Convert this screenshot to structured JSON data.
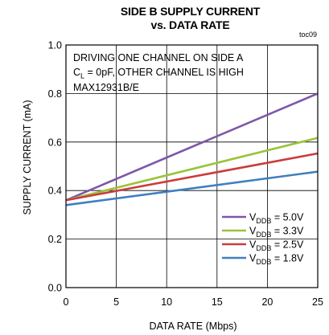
{
  "chart_data": {
    "type": "line",
    "title_line1": "SIDE B SUPPLY CURRENT",
    "title_line2": "vs. DATA RATE",
    "figure_tag": "toc09",
    "xlabel": "DATA RATE (Mbps)",
    "ylabel": "SUPPLY CURRENT (mA)",
    "xlim": [
      0,
      25
    ],
    "ylim": [
      0.0,
      1.0
    ],
    "x_ticks": [
      "0",
      "5",
      "10",
      "15",
      "20",
      "25"
    ],
    "y_ticks": [
      "0.0",
      "0.2",
      "0.4",
      "0.6",
      "0.8",
      "1.0"
    ],
    "grid": true,
    "legend_position": "bottom-right",
    "annotations": [
      "DRIVING ONE CHANNEL ON SIDE A",
      "C_L = 0pF, OTHER CHANNEL IS HIGH",
      "MAX12931B/E"
    ],
    "series": [
      {
        "name": "V_DDB = 5.0V",
        "color": "#7e57a8",
        "x": [
          0,
          25
        ],
        "y": [
          0.36,
          0.8
        ]
      },
      {
        "name": "V_DDB = 3.3V",
        "color": "#9ac43c",
        "x": [
          0,
          25
        ],
        "y": [
          0.36,
          0.617
        ]
      },
      {
        "name": "V_DDB = 2.5V",
        "color": "#cc3b3b",
        "x": [
          0,
          25
        ],
        "y": [
          0.36,
          0.553
        ]
      },
      {
        "name": "V_DDB = 1.8V",
        "color": "#3f7fc0",
        "x": [
          0,
          25
        ],
        "y": [
          0.34,
          0.478
        ]
      }
    ]
  }
}
